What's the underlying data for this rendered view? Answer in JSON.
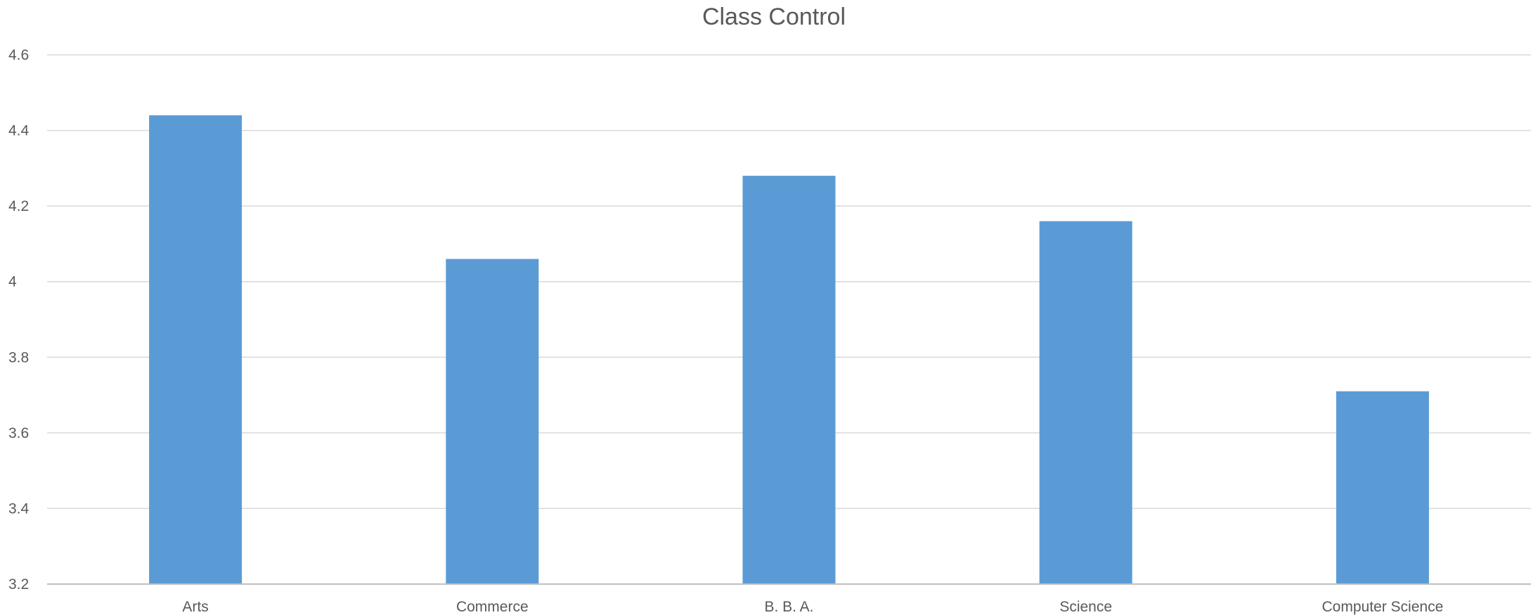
{
  "chart_data": {
    "type": "bar",
    "title": "Class Control",
    "xlabel": "",
    "ylabel": "",
    "categories": [
      "Arts",
      "Commerce",
      "B. B. A.",
      "Science",
      "Computer Science"
    ],
    "values": [
      4.44,
      4.06,
      4.28,
      4.16,
      3.71
    ],
    "ylim": [
      3.2,
      4.6
    ],
    "yticks": [
      "3.2",
      "3.4",
      "3.6",
      "3.8",
      "4",
      "4.2",
      "4.4",
      "4.6"
    ],
    "grid": true,
    "legend": "none",
    "colors": {
      "bar": "#5b9bd5",
      "grid": "#d9d9d9",
      "axis": "#bfbfbf",
      "text": "#595959"
    }
  }
}
